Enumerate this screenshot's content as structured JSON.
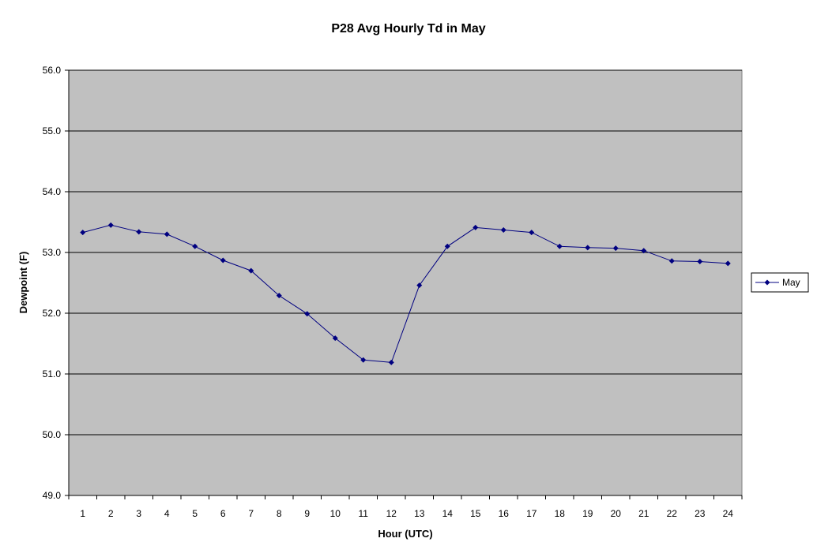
{
  "chart_data": {
    "type": "line",
    "title": "P28 Avg Hourly Td in May",
    "xlabel": "Hour (UTC)",
    "ylabel": "Dewpoint (F)",
    "categories": [
      "1",
      "2",
      "3",
      "4",
      "5",
      "6",
      "7",
      "8",
      "9",
      "10",
      "11",
      "12",
      "13",
      "14",
      "15",
      "16",
      "17",
      "18",
      "19",
      "20",
      "21",
      "22",
      "23",
      "24"
    ],
    "ylim": [
      49.0,
      56.0
    ],
    "yticks": [
      "49.0",
      "50.0",
      "51.0",
      "52.0",
      "53.0",
      "54.0",
      "55.0",
      "56.0"
    ],
    "series": [
      {
        "name": "May",
        "color": "#000080",
        "values": [
          53.33,
          53.45,
          53.34,
          53.3,
          53.1,
          52.87,
          52.7,
          52.29,
          51.99,
          51.59,
          51.23,
          51.19,
          52.46,
          53.1,
          53.41,
          53.37,
          53.33,
          53.1,
          53.08,
          53.07,
          53.03,
          52.86,
          52.85,
          52.82
        ]
      }
    ],
    "grid": true,
    "plot_background": "#c0c0c0",
    "legend": "right"
  }
}
